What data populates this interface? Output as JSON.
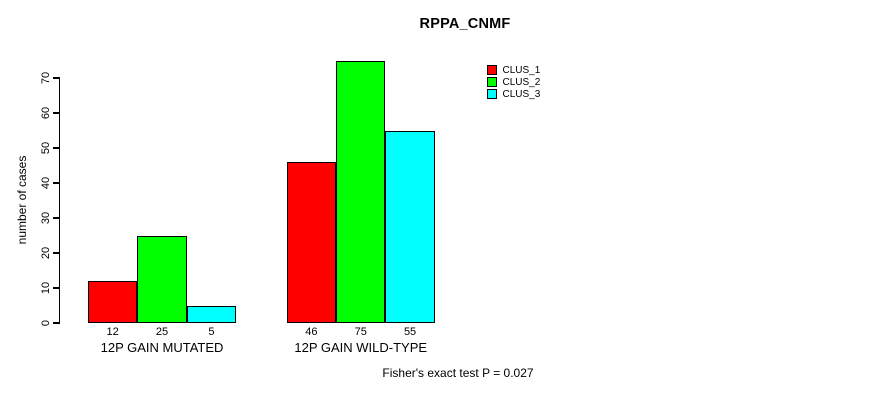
{
  "title": "RPPA_CNMF",
  "y_axis": {
    "label": "number of cases"
  },
  "footer": "Fisher's exact test P = 0.027",
  "legend": {
    "items": [
      {
        "label": "CLUS_1",
        "color": "#ff0000"
      },
      {
        "label": "CLUS_2",
        "color": "#00ff00"
      },
      {
        "label": "CLUS_3",
        "color": "#00ffff"
      }
    ]
  },
  "chart_data": {
    "type": "bar",
    "title": "RPPA_CNMF",
    "xlabel": "",
    "ylabel": "number of cases",
    "ylim": [
      0,
      70
    ],
    "yticks": [
      0,
      10,
      20,
      30,
      40,
      50,
      60,
      70
    ],
    "grid": false,
    "legend_position": "top-right-outside",
    "categories": [
      "12P GAIN MUTATED",
      "12P GAIN WILD-TYPE"
    ],
    "series": [
      {
        "name": "CLUS_1",
        "color": "#ff0000",
        "values": [
          12,
          46
        ]
      },
      {
        "name": "CLUS_2",
        "color": "#00ff00",
        "values": [
          25,
          75
        ]
      },
      {
        "name": "CLUS_3",
        "color": "#00ffff",
        "values": [
          5,
          55
        ]
      }
    ],
    "bar_value_labels_shown": true,
    "annotation": "Fisher's exact test P = 0.027"
  }
}
